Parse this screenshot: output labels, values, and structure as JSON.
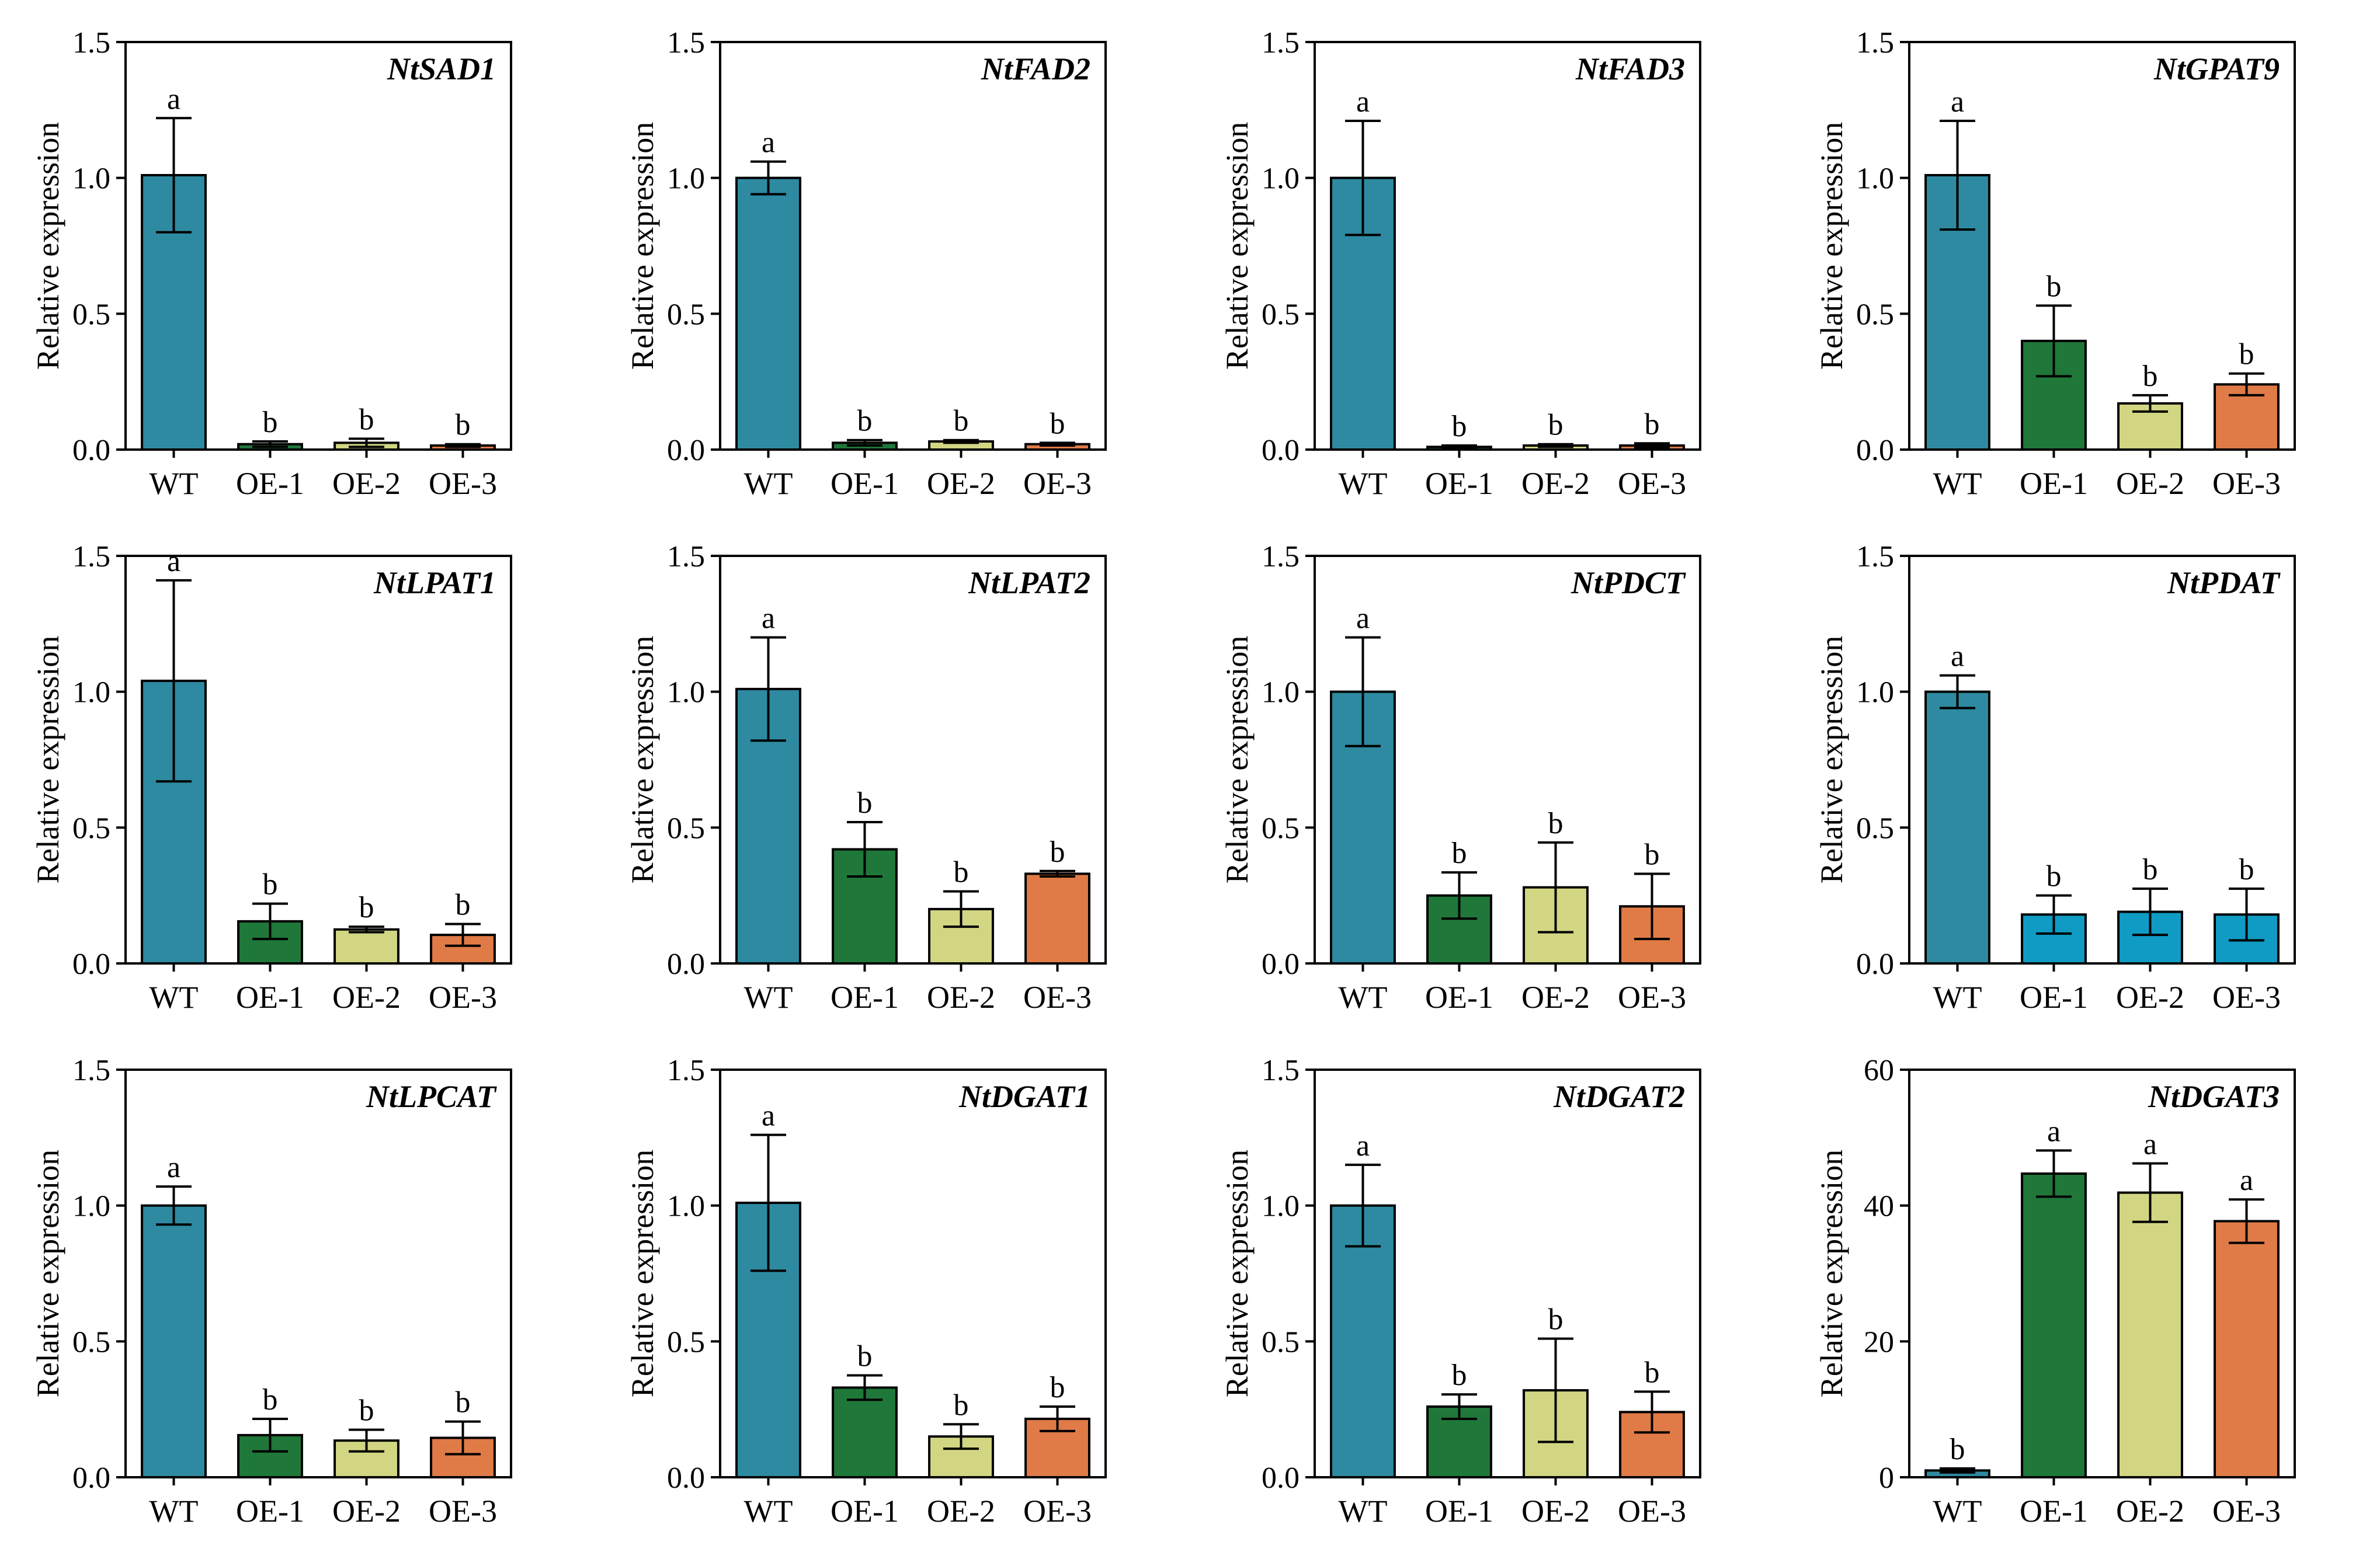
{
  "figure": {
    "colors": {
      "WT": "#2e8aa0",
      "OE-1": "#1f773a",
      "OE-2": "#d2d682",
      "OE-3": "#e07b47",
      "OE-blue": "#0f9bc4",
      "axis": "#000000"
    }
  },
  "chart_data": [
    {
      "type": "bar",
      "title": "NtSAD1",
      "ylabel": "Relative expression",
      "categories": [
        "WT",
        "OE-1",
        "OE-2",
        "OE-3"
      ],
      "values": [
        1.01,
        0.02,
        0.025,
        0.015
      ],
      "errors": [
        0.21,
        0.01,
        0.015,
        0.005
      ],
      "significance": [
        "a",
        "b",
        "b",
        "b"
      ],
      "ylim": [
        0,
        1.5
      ],
      "yticks": [
        0,
        0.5,
        1.0,
        1.5
      ],
      "ytick_labels": [
        "0.0",
        "0.5",
        "1.0",
        "1.5"
      ],
      "color_keys": [
        "WT",
        "OE-1",
        "OE-2",
        "OE-3"
      ]
    },
    {
      "type": "bar",
      "title": "NtFAD2",
      "ylabel": "Relative expression",
      "categories": [
        "WT",
        "OE-1",
        "OE-2",
        "OE-3"
      ],
      "values": [
        1.0,
        0.025,
        0.03,
        0.02
      ],
      "errors": [
        0.06,
        0.01,
        0.005,
        0.005
      ],
      "significance": [
        "a",
        "b",
        "b",
        "b"
      ],
      "ylim": [
        0,
        1.5
      ],
      "yticks": [
        0,
        0.5,
        1.0,
        1.5
      ],
      "ytick_labels": [
        "0.0",
        "0.5",
        "1.0",
        "1.5"
      ],
      "color_keys": [
        "WT",
        "OE-1",
        "OE-2",
        "OE-3"
      ]
    },
    {
      "type": "bar",
      "title": "NtFAD3",
      "ylabel": "Relative expression",
      "categories": [
        "WT",
        "OE-1",
        "OE-2",
        "OE-3"
      ],
      "values": [
        1.0,
        0.01,
        0.015,
        0.015
      ],
      "errors": [
        0.21,
        0.005,
        0.005,
        0.008
      ],
      "significance": [
        "a",
        "b",
        "b",
        "b"
      ],
      "ylim": [
        0,
        1.5
      ],
      "yticks": [
        0,
        0.5,
        1.0,
        1.5
      ],
      "ytick_labels": [
        "0.0",
        "0.5",
        "1.0",
        "1.5"
      ],
      "color_keys": [
        "WT",
        "OE-1",
        "OE-2",
        "OE-3"
      ]
    },
    {
      "type": "bar",
      "title": "NtGPAT9",
      "ylabel": "Relative expression",
      "categories": [
        "WT",
        "OE-1",
        "OE-2",
        "OE-3"
      ],
      "values": [
        1.01,
        0.4,
        0.17,
        0.24
      ],
      "errors": [
        0.2,
        0.13,
        0.03,
        0.04
      ],
      "significance": [
        "a",
        "b",
        "b",
        "b"
      ],
      "ylim": [
        0,
        1.5
      ],
      "yticks": [
        0,
        0.5,
        1.0,
        1.5
      ],
      "ytick_labels": [
        "0.0",
        "0.5",
        "1.0",
        "1.5"
      ],
      "color_keys": [
        "WT",
        "OE-1",
        "OE-2",
        "OE-3"
      ]
    },
    {
      "type": "bar",
      "title": "NtLPAT1",
      "ylabel": "Relative expression",
      "categories": [
        "WT",
        "OE-1",
        "OE-2",
        "OE-3"
      ],
      "values": [
        1.04,
        0.155,
        0.125,
        0.105
      ],
      "errors": [
        0.37,
        0.065,
        0.01,
        0.04
      ],
      "significance": [
        "a",
        "b",
        "b",
        "b"
      ],
      "ylim": [
        0,
        1.5
      ],
      "yticks": [
        0,
        0.5,
        1.0,
        1.5
      ],
      "ytick_labels": [
        "0.0",
        "0.5",
        "1.0",
        "1.5"
      ],
      "color_keys": [
        "WT",
        "OE-1",
        "OE-2",
        "OE-3"
      ]
    },
    {
      "type": "bar",
      "title": "NtLPAT2",
      "ylabel": "Relative expression",
      "categories": [
        "WT",
        "OE-1",
        "OE-2",
        "OE-3"
      ],
      "values": [
        1.01,
        0.42,
        0.2,
        0.33
      ],
      "errors": [
        0.19,
        0.1,
        0.065,
        0.01
      ],
      "significance": [
        "a",
        "b",
        "b",
        "b"
      ],
      "ylim": [
        0,
        1.5
      ],
      "yticks": [
        0,
        0.5,
        1.0,
        1.5
      ],
      "ytick_labels": [
        "0.0",
        "0.5",
        "1.0",
        "1.5"
      ],
      "color_keys": [
        "WT",
        "OE-1",
        "OE-2",
        "OE-3"
      ]
    },
    {
      "type": "bar",
      "title": "NtPDCT",
      "ylabel": "Relative expression",
      "categories": [
        "WT",
        "OE-1",
        "OE-2",
        "OE-3"
      ],
      "values": [
        1.0,
        0.25,
        0.28,
        0.21
      ],
      "errors": [
        0.2,
        0.085,
        0.165,
        0.12
      ],
      "significance": [
        "a",
        "b",
        "b",
        "b"
      ],
      "ylim": [
        0,
        1.5
      ],
      "yticks": [
        0,
        0.5,
        1.0,
        1.5
      ],
      "ytick_labels": [
        "0.0",
        "0.5",
        "1.0",
        "1.5"
      ],
      "color_keys": [
        "WT",
        "OE-1",
        "OE-2",
        "OE-3"
      ]
    },
    {
      "type": "bar",
      "title": "NtPDAT",
      "ylabel": "Relative expression",
      "categories": [
        "WT",
        "OE-1",
        "OE-2",
        "OE-3"
      ],
      "values": [
        1.0,
        0.18,
        0.19,
        0.18
      ],
      "errors": [
        0.06,
        0.07,
        0.085,
        0.095
      ],
      "significance": [
        "a",
        "b",
        "b",
        "b"
      ],
      "ylim": [
        0,
        1.5
      ],
      "yticks": [
        0,
        0.5,
        1.0,
        1.5
      ],
      "ytick_labels": [
        "0.0",
        "0.5",
        "1.0",
        "1.5"
      ],
      "color_keys": [
        "WT",
        "OE-blue",
        "OE-blue",
        "OE-blue"
      ]
    },
    {
      "type": "bar",
      "title": "NtLPCAT",
      "ylabel": "Relative expression",
      "categories": [
        "WT",
        "OE-1",
        "OE-2",
        "OE-3"
      ],
      "values": [
        1.0,
        0.155,
        0.135,
        0.145
      ],
      "errors": [
        0.07,
        0.06,
        0.04,
        0.06
      ],
      "significance": [
        "a",
        "b",
        "b",
        "b"
      ],
      "ylim": [
        0,
        1.5
      ],
      "yticks": [
        0,
        0.5,
        1.0,
        1.5
      ],
      "ytick_labels": [
        "0.0",
        "0.5",
        "1.0",
        "1.5"
      ],
      "color_keys": [
        "WT",
        "OE-1",
        "OE-2",
        "OE-3"
      ]
    },
    {
      "type": "bar",
      "title": "NtDGAT1",
      "ylabel": "Relative expression",
      "categories": [
        "WT",
        "OE-1",
        "OE-2",
        "OE-3"
      ],
      "values": [
        1.01,
        0.33,
        0.15,
        0.215
      ],
      "errors": [
        0.25,
        0.045,
        0.045,
        0.045
      ],
      "significance": [
        "a",
        "b",
        "b",
        "b"
      ],
      "ylim": [
        0,
        1.5
      ],
      "yticks": [
        0,
        0.5,
        1.0,
        1.5
      ],
      "ytick_labels": [
        "0.0",
        "0.5",
        "1.0",
        "1.5"
      ],
      "color_keys": [
        "WT",
        "OE-1",
        "OE-2",
        "OE-3"
      ]
    },
    {
      "type": "bar",
      "title": "NtDGAT2",
      "ylabel": "Relative expression",
      "categories": [
        "WT",
        "OE-1",
        "OE-2",
        "OE-3"
      ],
      "values": [
        1.0,
        0.26,
        0.32,
        0.24
      ],
      "errors": [
        0.15,
        0.045,
        0.19,
        0.075
      ],
      "significance": [
        "a",
        "b",
        "b",
        "b"
      ],
      "ylim": [
        0,
        1.5
      ],
      "yticks": [
        0,
        0.5,
        1.0,
        1.5
      ],
      "ytick_labels": [
        "0.0",
        "0.5",
        "1.0",
        "1.5"
      ],
      "color_keys": [
        "WT",
        "OE-1",
        "OE-2",
        "OE-3"
      ]
    },
    {
      "type": "bar",
      "title": "NtDGAT3",
      "ylabel": "Relative expression",
      "categories": [
        "WT",
        "OE-1",
        "OE-2",
        "OE-3"
      ],
      "values": [
        1.0,
        44.7,
        41.9,
        37.7
      ],
      "errors": [
        0.3,
        3.4,
        4.3,
        3.2
      ],
      "significance": [
        "b",
        "a",
        "a",
        "a"
      ],
      "ylim": [
        0,
        60
      ],
      "yticks": [
        0,
        20,
        40,
        60
      ],
      "ytick_labels": [
        "0",
        "20",
        "40",
        "60"
      ],
      "color_keys": [
        "WT",
        "OE-1",
        "OE-2",
        "OE-3"
      ]
    }
  ]
}
